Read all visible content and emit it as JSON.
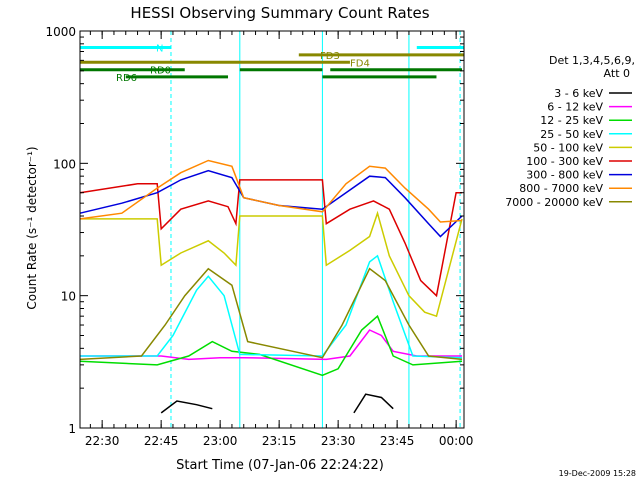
{
  "chart_data": {
    "type": "line",
    "title": "HESSI Observing Summary Count Rates",
    "xlabel": "Start Time (07-Jan-06 22:24:22)",
    "ylabel": "Count Rate (s⁻¹ detector⁻¹)",
    "y_scale": "log",
    "ylim": [
      1,
      1000
    ],
    "xlim": [
      "22:24:22",
      "00:02:00"
    ],
    "x_ticks": [
      "22:30",
      "22:45",
      "23:00",
      "23:15",
      "23:30",
      "23:45",
      "00:00"
    ],
    "y_ticks": [
      "1",
      "10",
      "100",
      "1000"
    ],
    "legend_header": [
      "Det 1,3,4,5,6,9,",
      "Att 0"
    ],
    "legend_position": "right",
    "footer": "19-Dec-2009 15:28",
    "series": [
      {
        "name": "3 - 6 keV",
        "color": "#000000",
        "points": [
          [
            "22:24:22",
            null
          ],
          [
            "22:44:00",
            null
          ],
          [
            "22:45:00",
            1.3
          ],
          [
            "22:49:00",
            1.6
          ],
          [
            "22:54:00",
            1.5
          ],
          [
            "22:58:00",
            1.4
          ],
          [
            "23:00:00",
            null
          ],
          [
            "23:33:00",
            null
          ],
          [
            "23:34:00",
            1.3
          ],
          [
            "23:37:00",
            1.8
          ],
          [
            "23:41:00",
            1.7
          ],
          [
            "23:44:00",
            1.4
          ],
          [
            "23:46:00",
            null
          ]
        ]
      },
      {
        "name": "6 - 12 keV",
        "color": "#ff00ff",
        "points": [
          [
            "22:24:22",
            3.5
          ],
          [
            "22:45:00",
            3.5
          ],
          [
            "22:52:00",
            3.3
          ],
          [
            "23:00:00",
            3.4
          ],
          [
            "23:06:00",
            3.4
          ],
          [
            "23:27:00",
            3.3
          ],
          [
            "23:33:00",
            3.5
          ],
          [
            "23:38:00",
            5.5
          ],
          [
            "23:41:00",
            5.0
          ],
          [
            "23:44:00",
            3.8
          ],
          [
            "23:50:00",
            3.5
          ],
          [
            "00:01:30",
            3.5
          ]
        ]
      },
      {
        "name": "12 - 25 keV",
        "color": "#00dd00",
        "points": [
          [
            "22:24:22",
            3.2
          ],
          [
            "22:44:00",
            3.0
          ],
          [
            "22:52:00",
            3.5
          ],
          [
            "22:58:00",
            4.5
          ],
          [
            "23:03:00",
            3.8
          ],
          [
            "23:10:00",
            3.6
          ],
          [
            "23:26:00",
            2.5
          ],
          [
            "23:30:00",
            2.8
          ],
          [
            "23:36:00",
            5.5
          ],
          [
            "23:40:00",
            7.0
          ],
          [
            "23:44:00",
            3.5
          ],
          [
            "23:49:00",
            3.0
          ],
          [
            "00:01:30",
            3.2
          ]
        ]
      },
      {
        "name": "25 - 50 keV",
        "color": "#00ffff",
        "points": [
          [
            "22:24:22",
            3.5
          ],
          [
            "22:44:00",
            3.5
          ],
          [
            "22:48:00",
            5.0
          ],
          [
            "22:54:00",
            11.0
          ],
          [
            "22:57:00",
            14.0
          ],
          [
            "23:01:00",
            10.0
          ],
          [
            "23:05:00",
            3.6
          ],
          [
            "23:26:00",
            3.5
          ],
          [
            "23:32:00",
            6.0
          ],
          [
            "23:38:00",
            18.0
          ],
          [
            "23:40:00",
            20.0
          ],
          [
            "23:44:00",
            9.0
          ],
          [
            "23:49:00",
            3.5
          ],
          [
            "00:01:30",
            3.4
          ]
        ]
      },
      {
        "name": "50 - 100 keV",
        "color": "#cccc00",
        "points": [
          [
            "22:24:22",
            38.0
          ],
          [
            "22:44:00",
            38.0
          ],
          [
            "22:45:00",
            17.0
          ],
          [
            "22:50:00",
            21.0
          ],
          [
            "22:57:00",
            26.0
          ],
          [
            "23:01:00",
            21.0
          ],
          [
            "23:04:00",
            17.0
          ],
          [
            "23:05:00",
            40.0
          ],
          [
            "23:26:00",
            40.0
          ],
          [
            "23:27:00",
            17.0
          ],
          [
            "23:33:00",
            22.0
          ],
          [
            "23:38:00",
            28.0
          ],
          [
            "23:40:00",
            42.0
          ],
          [
            "23:43:00",
            20.0
          ],
          [
            "23:48:00",
            10.0
          ],
          [
            "23:52:00",
            7.5
          ],
          [
            "23:55:00",
            7.0
          ],
          [
            "00:01:30",
            38.0
          ]
        ]
      },
      {
        "name": "100 - 300 keV",
        "color": "#dd0000",
        "points": [
          [
            "22:24:22",
            60.0
          ],
          [
            "22:39:00",
            70.0
          ],
          [
            "22:44:00",
            70.0
          ],
          [
            "22:45:00",
            32.0
          ],
          [
            "22:50:00",
            45.0
          ],
          [
            "22:57:00",
            52.0
          ],
          [
            "23:02:00",
            47.0
          ],
          [
            "23:04:00",
            35.0
          ],
          [
            "23:05:00",
            75.0
          ],
          [
            "23:26:00",
            75.0
          ],
          [
            "23:27:00",
            35.0
          ],
          [
            "23:33:00",
            45.0
          ],
          [
            "23:39:00",
            52.0
          ],
          [
            "23:43:00",
            45.0
          ],
          [
            "23:47:00",
            25.0
          ],
          [
            "23:51:00",
            13.0
          ],
          [
            "23:55:00",
            10.0
          ],
          [
            "00:00:00",
            60.0
          ],
          [
            "00:01:30",
            60.0
          ]
        ]
      },
      {
        "name": "300 - 800 keV",
        "color": "#0000dd",
        "points": [
          [
            "22:24:22",
            42.0
          ],
          [
            "22:35:00",
            50.0
          ],
          [
            "22:44:00",
            60.0
          ],
          [
            "22:50:00",
            75.0
          ],
          [
            "22:57:00",
            88.0
          ],
          [
            "23:03:00",
            78.0
          ],
          [
            "23:06:00",
            55.0
          ],
          [
            "23:15:00",
            48.0
          ],
          [
            "23:26:00",
            45.0
          ],
          [
            "23:32:00",
            60.0
          ],
          [
            "23:38:00",
            80.0
          ],
          [
            "23:42:00",
            78.0
          ],
          [
            "23:47:00",
            55.0
          ],
          [
            "23:53:00",
            35.0
          ],
          [
            "23:56:00",
            28.0
          ],
          [
            "00:01:30",
            40.0
          ]
        ]
      },
      {
        "name": "800 - 7000 keV",
        "color": "#ff8800",
        "points": [
          [
            "22:24:22",
            38.0
          ],
          [
            "22:35:00",
            42.0
          ],
          [
            "22:44:00",
            65.0
          ],
          [
            "22:50:00",
            85.0
          ],
          [
            "22:57:00",
            105.0
          ],
          [
            "23:03:00",
            95.0
          ],
          [
            "23:06:00",
            55.0
          ],
          [
            "23:15:00",
            48.0
          ],
          [
            "23:26:00",
            43.0
          ],
          [
            "23:32:00",
            70.0
          ],
          [
            "23:38:00",
            95.0
          ],
          [
            "23:42:00",
            92.0
          ],
          [
            "23:47:00",
            65.0
          ],
          [
            "23:53:00",
            45.0
          ],
          [
            "23:56:00",
            36.0
          ],
          [
            "00:01:30",
            37.0
          ]
        ]
      },
      {
        "name": "7000 - 20000 keV",
        "color": "#888800",
        "points": [
          [
            "22:24:22",
            3.3
          ],
          [
            "22:40:00",
            3.5
          ],
          [
            "22:46:00",
            6.0
          ],
          [
            "22:51:00",
            10.0
          ],
          [
            "22:57:00",
            16.0
          ],
          [
            "23:03:00",
            12.0
          ],
          [
            "23:07:00",
            4.5
          ],
          [
            "23:26:00",
            3.4
          ],
          [
            "23:31:00",
            6.0
          ],
          [
            "23:38:00",
            16.0
          ],
          [
            "23:42:00",
            13.0
          ],
          [
            "23:48:00",
            6.0
          ],
          [
            "23:53:00",
            3.5
          ],
          [
            "00:01:30",
            3.3
          ]
        ]
      }
    ],
    "flag_bars": [
      {
        "label": "N",
        "color": "#00ffff",
        "value": 750,
        "segments": [
          [
            "22:24:22",
            "22:47:30"
          ],
          [
            "23:50:00",
            "00:02:00"
          ]
        ]
      },
      {
        "label": "FD3",
        "color": "#888800",
        "value": 660,
        "segments": [
          [
            "23:20:00",
            "00:02:00"
          ]
        ]
      },
      {
        "label": "FD4",
        "color": "#888800",
        "value": 580,
        "segments": [
          [
            "22:24:22",
            "23:33:00"
          ]
        ]
      },
      {
        "label": "RD0",
        "color": "#007700",
        "value": 510,
        "segments": [
          [
            "22:24:22",
            "22:51:00"
          ],
          [
            "23:05:00",
            "23:26:00"
          ],
          [
            "23:28:00",
            "00:01:30"
          ]
        ]
      },
      {
        "label": "RD6",
        "color": "#007700",
        "value": 450,
        "segments": [
          [
            "22:36:00",
            "23:02:00"
          ],
          [
            "23:26:00",
            "23:55:00"
          ]
        ]
      }
    ],
    "vertical_markers": [
      {
        "time": "22:24:22",
        "style": "solid",
        "color": "#00ffff"
      },
      {
        "time": "22:47:30",
        "style": "dashed",
        "color": "#00ffff"
      },
      {
        "time": "23:05:00",
        "style": "solid",
        "color": "#00ffff"
      },
      {
        "time": "23:26:00",
        "style": "solid",
        "color": "#00ffff"
      },
      {
        "time": "23:48:00",
        "style": "solid",
        "color": "#00ffff"
      },
      {
        "time": "00:01:00",
        "style": "dashed",
        "color": "#00ffff"
      }
    ]
  }
}
